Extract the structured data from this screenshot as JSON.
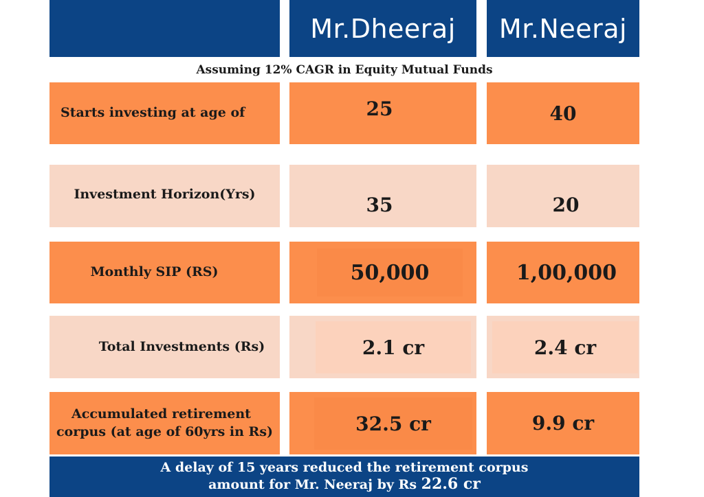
{
  "header": {
    "col1": "Mr.Dheeraj",
    "col2": "Mr.Neeraj"
  },
  "subtitle": "Assuming 12% CAGR in Equity Mutual Funds",
  "rows": [
    {
      "label": "Starts investing at age of",
      "dheeraj": "25",
      "neeraj": "40"
    },
    {
      "label": "Investment Horizon(Yrs)",
      "dheeraj": "35",
      "neeraj": "20"
    },
    {
      "label": "Monthly SIP (RS)",
      "dheeraj": "50,000",
      "neeraj": "1,00,000"
    },
    {
      "label": "Total Investments (Rs)",
      "dheeraj": "2.1 cr",
      "neeraj": "2.4 cr"
    },
    {
      "label_line1": "Accumulated retirement",
      "label_line2": "corpus (at age of 60yrs in Rs)",
      "dheeraj": "32.5 cr",
      "neeraj": "9.9 cr"
    }
  ],
  "footer": {
    "line1": "A delay of 15 years reduced the retirement corpus",
    "line2_prefix": "amount for Mr. Neeraj by Rs ",
    "line2_amount": "22.6 cr"
  },
  "colors": {
    "blue": "#0c4485",
    "orange": "#fc8e4c",
    "peach": "#f8d7c6"
  }
}
